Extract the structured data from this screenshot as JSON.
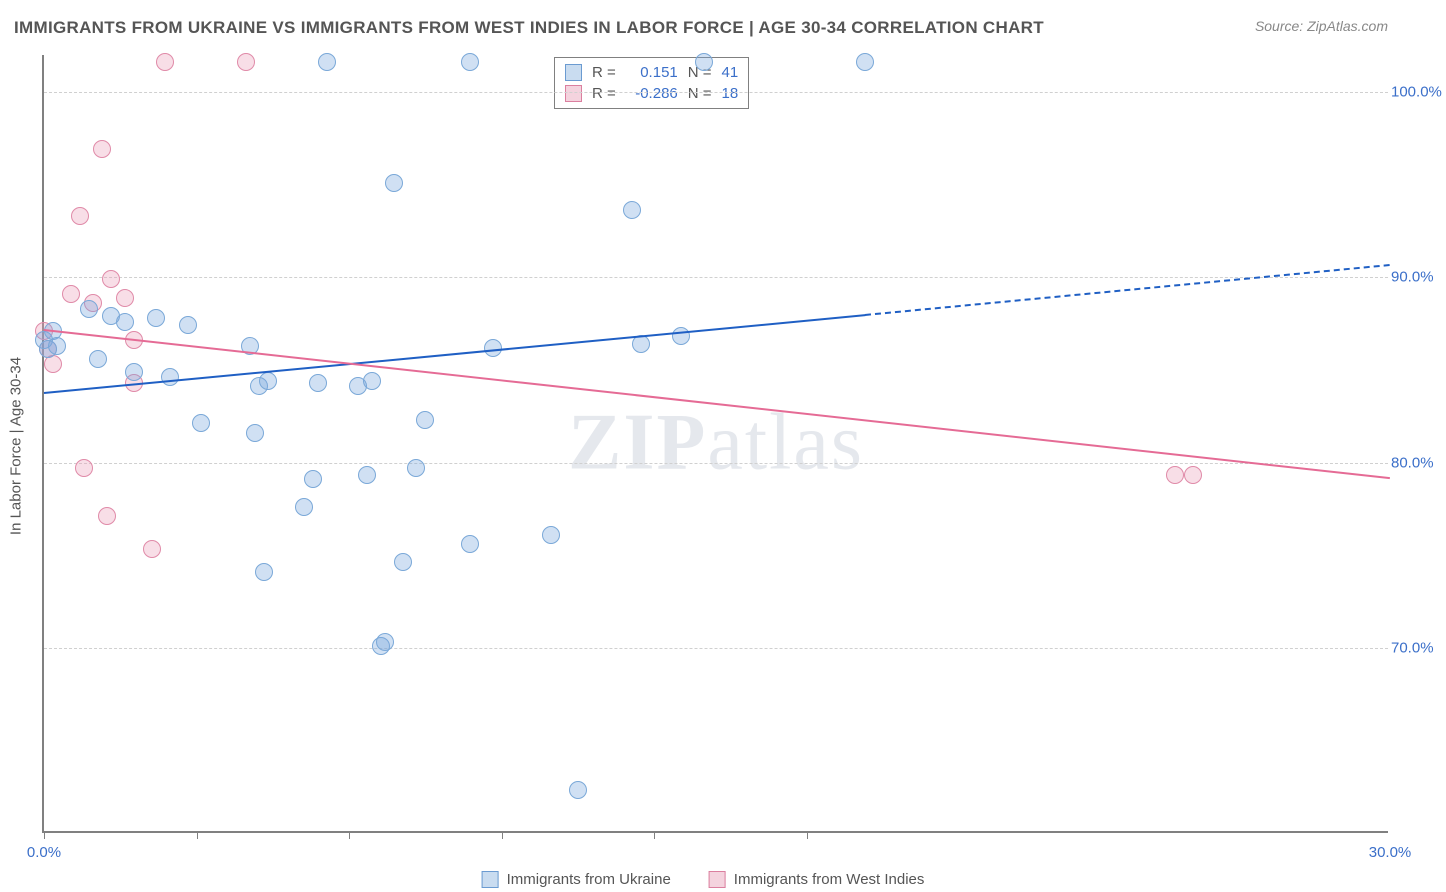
{
  "title": "IMMIGRANTS FROM UKRAINE VS IMMIGRANTS FROM WEST INDIES IN LABOR FORCE | AGE 30-34 CORRELATION CHART",
  "source": "Source: ZipAtlas.com",
  "yaxis_label": "In Labor Force | Age 30-34",
  "watermark_a": "ZIP",
  "watermark_b": "atlas",
  "chart": {
    "type": "scatter",
    "xlim": [
      0,
      30
    ],
    "ylim": [
      60,
      102
    ],
    "x_ticks": [
      0,
      3.4,
      6.8,
      10.2,
      13.6,
      17.0
    ],
    "x_tick_labels": {
      "0": "0.0%",
      "30": "30.0%"
    },
    "y_gridlines": [
      70,
      80,
      90,
      100
    ],
    "y_tick_labels": {
      "70": "70.0%",
      "80": "80.0%",
      "90": "90.0%",
      "100": "100.0%"
    },
    "point_radius": 9,
    "point_border_width": 1.5,
    "grid_color": "#d0d0d0",
    "axis_color": "#808080",
    "background": "#ffffff"
  },
  "series": {
    "ukraine": {
      "label": "Immigrants from Ukraine",
      "fill": "rgba(120,165,220,0.35)",
      "stroke": "#7aa8d8",
      "swatch_fill": "#c9dcf0",
      "swatch_border": "#6b9bd1",
      "r_value": "0.151",
      "n_value": "41",
      "trend": {
        "color": "#1f5fc4",
        "x1": 0,
        "y1": 83.8,
        "x2": 18.3,
        "y2": 88.0,
        "dash_x2": 30,
        "dash_y2": 90.7
      },
      "points": [
        [
          0.0,
          86.5
        ],
        [
          0.1,
          86.0
        ],
        [
          0.2,
          87.0
        ],
        [
          0.3,
          86.2
        ],
        [
          1.0,
          88.2
        ],
        [
          1.2,
          85.5
        ],
        [
          1.5,
          87.8
        ],
        [
          1.8,
          87.5
        ],
        [
          2.0,
          84.8
        ],
        [
          2.5,
          87.7
        ],
        [
          2.8,
          84.5
        ],
        [
          3.2,
          87.3
        ],
        [
          3.5,
          82.0
        ],
        [
          4.6,
          86.2
        ],
        [
          4.7,
          81.5
        ],
        [
          4.8,
          84.0
        ],
        [
          4.9,
          74.0
        ],
        [
          5.0,
          84.3
        ],
        [
          5.8,
          77.5
        ],
        [
          6.0,
          79.0
        ],
        [
          6.1,
          84.2
        ],
        [
          6.3,
          101.5
        ],
        [
          7.0,
          84.0
        ],
        [
          7.2,
          79.2
        ],
        [
          7.3,
          84.3
        ],
        [
          7.5,
          70.0
        ],
        [
          7.6,
          70.2
        ],
        [
          7.8,
          95.0
        ],
        [
          8.0,
          74.5
        ],
        [
          8.3,
          79.6
        ],
        [
          8.5,
          82.2
        ],
        [
          9.5,
          101.5
        ],
        [
          9.5,
          75.5
        ],
        [
          10.0,
          86.1
        ],
        [
          11.3,
          76.0
        ],
        [
          11.9,
          62.2
        ],
        [
          13.1,
          93.5
        ],
        [
          13.3,
          86.3
        ],
        [
          14.2,
          86.7
        ],
        [
          14.7,
          101.5
        ],
        [
          18.3,
          101.5
        ]
      ]
    },
    "west_indies": {
      "label": "Immigrants from West Indies",
      "fill": "rgba(235,160,185,0.35)",
      "stroke": "#e08aa8",
      "swatch_fill": "#f4d3de",
      "swatch_border": "#db7f9f",
      "r_value": "-0.286",
      "n_value": "18",
      "trend": {
        "color": "#e56b95",
        "x1": 0,
        "y1": 87.2,
        "x2": 30,
        "y2": 79.2
      },
      "points": [
        [
          0.0,
          87.0
        ],
        [
          0.1,
          86.0
        ],
        [
          0.2,
          85.2
        ],
        [
          0.6,
          89.0
        ],
        [
          0.8,
          93.2
        ],
        [
          0.9,
          79.6
        ],
        [
          1.1,
          88.5
        ],
        [
          1.3,
          96.8
        ],
        [
          1.4,
          77.0
        ],
        [
          1.5,
          89.8
        ],
        [
          1.8,
          88.8
        ],
        [
          2.0,
          86.5
        ],
        [
          2.0,
          84.2
        ],
        [
          2.4,
          75.2
        ],
        [
          2.7,
          101.5
        ],
        [
          4.5,
          101.5
        ],
        [
          25.2,
          79.2
        ],
        [
          25.6,
          79.2
        ]
      ]
    }
  },
  "stats_box": {
    "r_label": "R =",
    "n_label": "N ="
  },
  "bottom_legend": {
    "a": "Immigrants from Ukraine",
    "b": "Immigrants from West Indies"
  }
}
